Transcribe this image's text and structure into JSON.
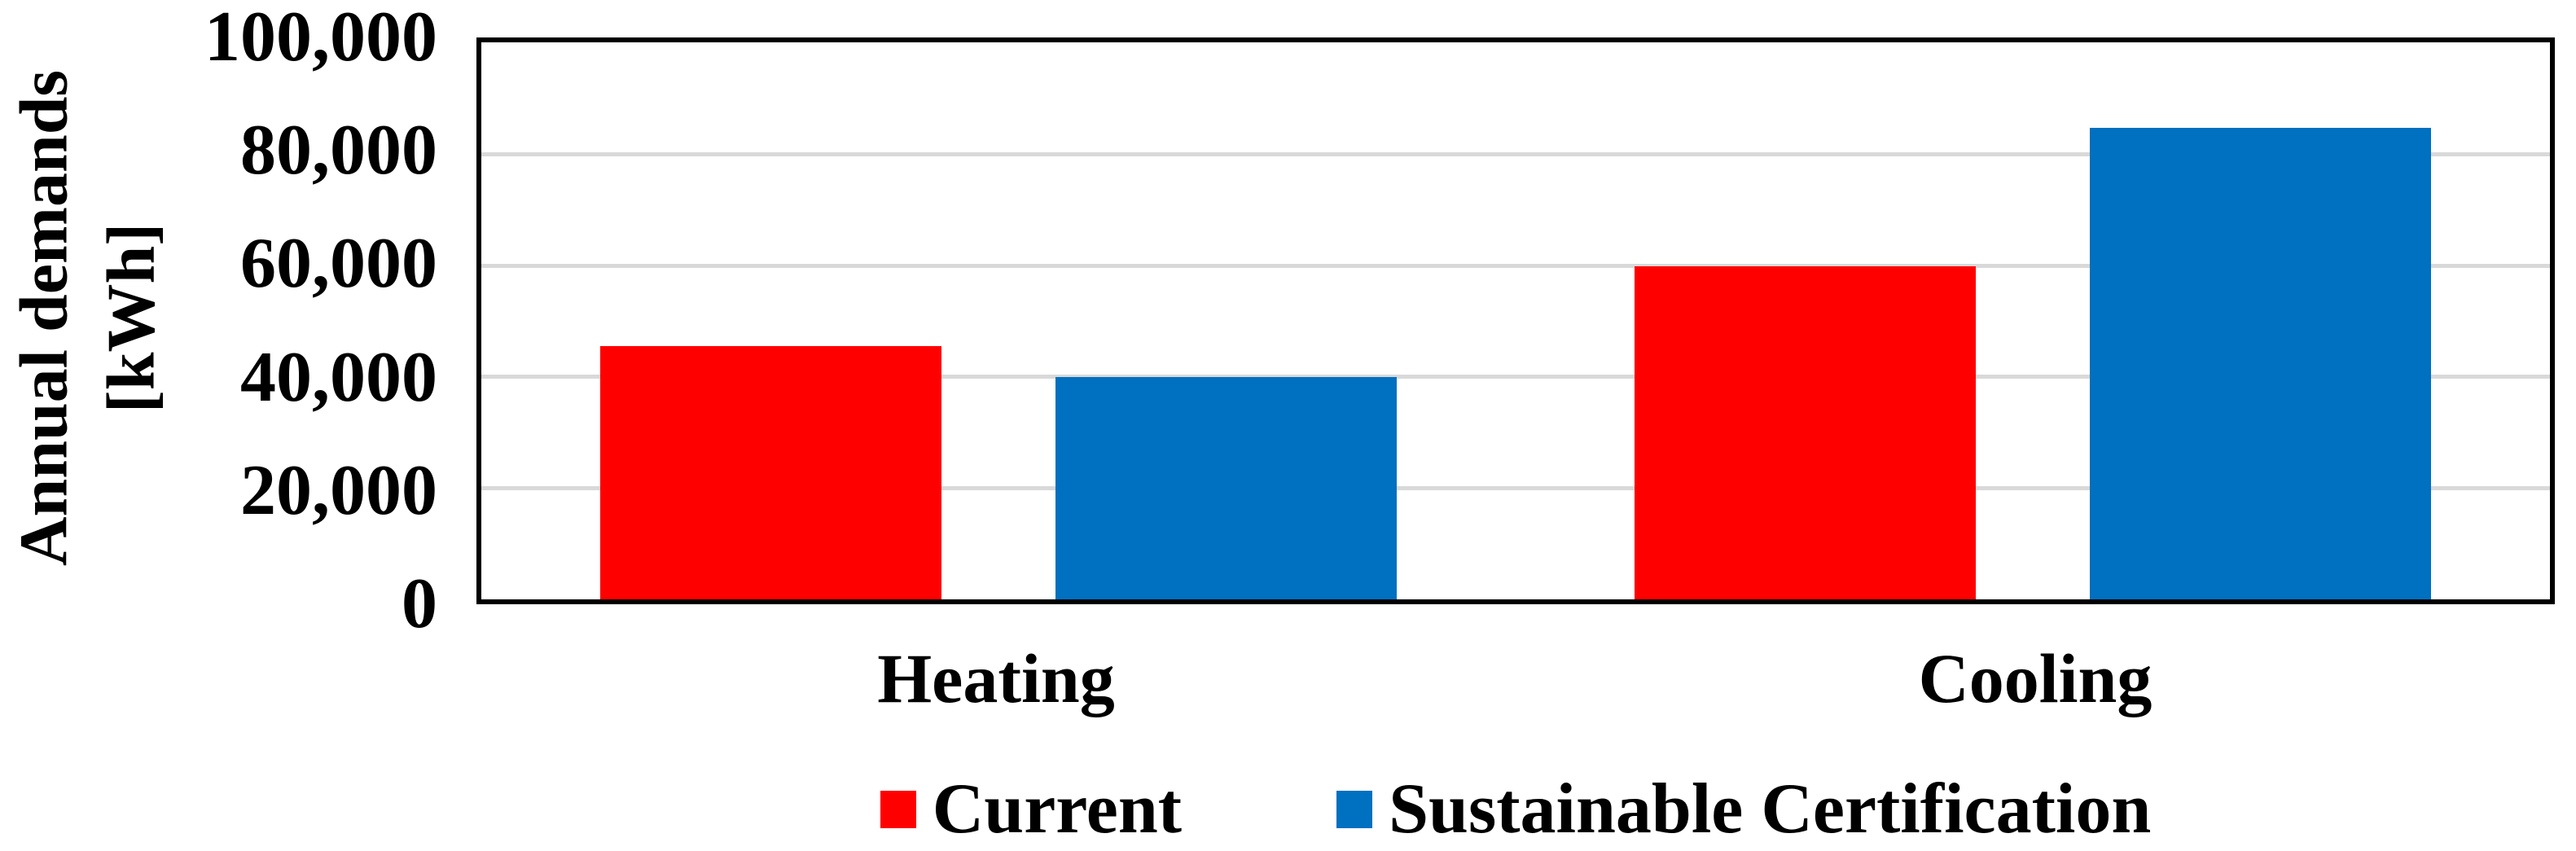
{
  "chart_data": {
    "type": "bar",
    "categories": [
      "Heating",
      "Cooling"
    ],
    "series": [
      {
        "name": "Current",
        "color": "#ff0000",
        "values": [
          45500,
          59800
        ]
      },
      {
        "name": "Sustainable Certification",
        "color": "#0070c0",
        "values": [
          39900,
          84600
        ]
      }
    ],
    "title": "",
    "xlabel": "",
    "ylabel": "Annual demands [kWh]",
    "ylabel_lines": [
      "Annual demands",
      "[kWh]"
    ],
    "yticks": [
      "0",
      "20,000",
      "40,000",
      "60,000",
      "80,000",
      "100,000"
    ],
    "ytick_values": [
      0,
      20000,
      40000,
      60000,
      80000,
      100000
    ],
    "ylim": [
      0,
      100000
    ],
    "grid": "horizontal-only",
    "legend_position": "bottom-center",
    "group_centers_pct": [
      25,
      75
    ],
    "bar_width_pct": 16.5,
    "bar_inner_gap_pct": 5.5
  },
  "legend": {
    "items": [
      {
        "label": "Current",
        "color": "#ff0000"
      },
      {
        "label": "Sustainable Certification",
        "color": "#0070c0"
      }
    ]
  },
  "colors": {
    "grid": "#d9d9d9",
    "axis_border": "#000000",
    "background": "#ffffff",
    "text": "#000000"
  }
}
